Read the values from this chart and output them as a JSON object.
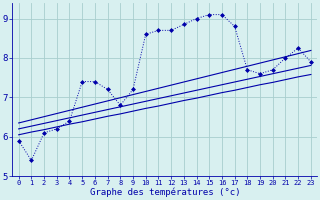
{
  "xlabel": "Graphe des températures (°c)",
  "bg_color": "#d8f0f0",
  "grid_color": "#a8cece",
  "line_color": "#0000aa",
  "x_hours": [
    0,
    1,
    2,
    3,
    4,
    5,
    6,
    7,
    8,
    9,
    10,
    11,
    12,
    13,
    14,
    15,
    16,
    17,
    18,
    19,
    20,
    21,
    22,
    23
  ],
  "main_temps": [
    5.9,
    5.4,
    6.1,
    6.2,
    6.4,
    7.4,
    7.4,
    7.2,
    6.8,
    7.2,
    8.6,
    8.7,
    8.7,
    8.85,
    9.0,
    9.1,
    9.1,
    8.8,
    7.7,
    7.6,
    7.7,
    8.0,
    8.25,
    7.9
  ],
  "trend_line1": [
    6.05,
    6.12,
    6.18,
    6.25,
    6.32,
    6.38,
    6.45,
    6.52,
    6.58,
    6.65,
    6.72,
    6.78,
    6.85,
    6.92,
    6.98,
    7.05,
    7.12,
    7.18,
    7.25,
    7.32,
    7.38,
    7.45,
    7.52,
    7.58
  ],
  "trend_line2": [
    6.2,
    6.27,
    6.34,
    6.41,
    6.48,
    6.55,
    6.62,
    6.69,
    6.76,
    6.83,
    6.9,
    6.97,
    7.04,
    7.11,
    7.18,
    7.25,
    7.32,
    7.39,
    7.46,
    7.53,
    7.6,
    7.67,
    7.74,
    7.81
  ],
  "trend_line3": [
    6.35,
    6.43,
    6.51,
    6.59,
    6.67,
    6.75,
    6.83,
    6.91,
    6.99,
    7.07,
    7.15,
    7.23,
    7.31,
    7.39,
    7.47,
    7.55,
    7.63,
    7.71,
    7.79,
    7.87,
    7.95,
    8.03,
    8.11,
    8.19
  ],
  "ylim": [
    5.0,
    9.4
  ],
  "yticks": [
    5,
    6,
    7,
    8,
    9
  ],
  "xlim": [
    -0.5,
    23.5
  ],
  "figw": 3.2,
  "figh": 2.0,
  "dpi": 100
}
